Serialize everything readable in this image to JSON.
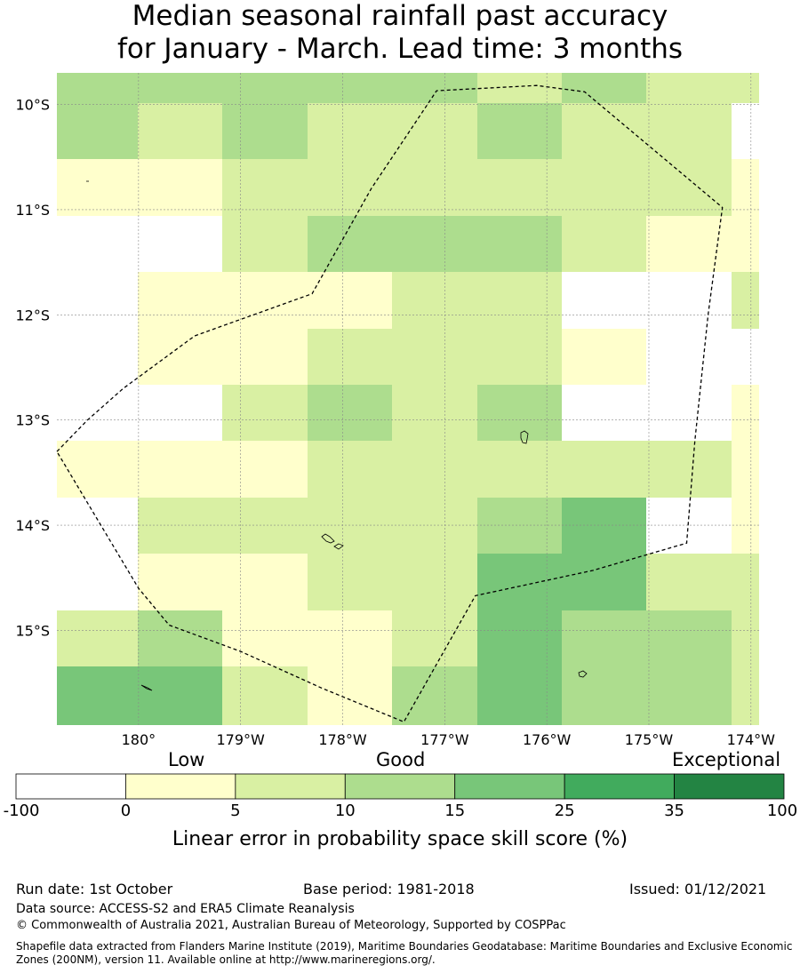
{
  "title_line1": "Median seasonal rainfall past accuracy",
  "title_line2": "for January - March. Lead time: 3 months",
  "map": {
    "lon_labels": [
      "180°",
      "179°W",
      "178°W",
      "177°W",
      "176°W",
      "175°W",
      "174°W"
    ],
    "lat_labels": [
      "10°S",
      "11°S",
      "12°S",
      "13°S",
      "14°S",
      "15°S"
    ],
    "lon_values": [
      180,
      -179,
      -178,
      -177,
      -176,
      -175,
      -174
    ],
    "lat_values": [
      -10,
      -11,
      -12,
      -13,
      -14,
      -15
    ],
    "extent": {
      "lon_min": 179.2,
      "lon_max": -173.92,
      "lat_min": -15.9,
      "lat_max": -9.7
    },
    "grid_cell_deg": 0.833,
    "skill_grid_rows_north_to_south": [
      [
        3,
        3,
        3,
        3,
        3,
        2,
        3,
        2,
        2
      ],
      [
        3,
        2,
        3,
        2,
        2,
        3,
        2,
        2,
        0
      ],
      [
        1,
        1,
        2,
        2,
        2,
        2,
        2,
        2,
        1
      ],
      [
        0,
        0,
        2,
        3,
        3,
        3,
        2,
        1,
        1
      ],
      [
        0,
        1,
        1,
        1,
        2,
        2,
        0,
        0,
        2
      ],
      [
        0,
        1,
        1,
        2,
        2,
        2,
        1,
        0,
        0
      ],
      [
        0,
        0,
        2,
        3,
        2,
        3,
        0,
        0,
        1
      ],
      [
        1,
        1,
        1,
        2,
        2,
        2,
        2,
        2,
        1
      ],
      [
        0,
        2,
        2,
        2,
        2,
        3,
        4,
        0,
        1
      ],
      [
        0,
        1,
        1,
        2,
        2,
        4,
        4,
        2,
        2
      ],
      [
        2,
        3,
        1,
        1,
        2,
        4,
        3,
        3,
        2
      ],
      [
        4,
        4,
        2,
        1,
        3,
        4,
        3,
        3,
        2
      ]
    ],
    "boundary_lonlat": [
      [
        179.2,
        -13.3
      ],
      [
        179.5,
        -13.0
      ],
      [
        179.85,
        -12.7
      ],
      [
        180.55,
        -12.2
      ],
      [
        181.7,
        -11.8
      ],
      [
        182.28,
        -10.8
      ],
      [
        182.92,
        -9.87
      ],
      [
        183.9,
        -9.82
      ],
      [
        184.37,
        -9.88
      ],
      [
        185.72,
        -10.98
      ],
      [
        185.58,
        -12.0
      ],
      [
        185.45,
        -13.2
      ],
      [
        185.37,
        -14.17
      ],
      [
        184.45,
        -14.43
      ],
      [
        183.3,
        -14.67
      ],
      [
        182.6,
        -15.87
      ],
      [
        181.8,
        -15.55
      ],
      [
        181.0,
        -15.2
      ],
      [
        180.3,
        -14.95
      ],
      [
        180.0,
        -14.6
      ],
      [
        179.6,
        -13.95
      ],
      [
        179.2,
        -13.3
      ]
    ],
    "palette": [
      "#ffffff",
      "#ffffcc",
      "#d9f0a3",
      "#addd8e",
      "#78c679",
      "#41ab5d",
      "#238443"
    ]
  },
  "colorbar": {
    "word_low": "Low",
    "word_good": "Good",
    "word_exceptional": "Exceptional",
    "ticks": [
      "-100",
      "0",
      "5",
      "10",
      "15",
      "25",
      "35",
      "100"
    ],
    "colors": [
      "#ffffff",
      "#ffffcc",
      "#d9f0a3",
      "#addd8e",
      "#78c679",
      "#41ab5d",
      "#238443"
    ],
    "label": "Linear error in probability space skill score (%)"
  },
  "footer": {
    "run_date": "Run date: 1st October",
    "base_period": "Base period: 1981-2018",
    "issued": "Issued: 01/12/2021",
    "data_source": "Data source: ACCESS-S2 and ERA5 Climate Reanalysis",
    "copyright": "© Commonwealth of Australia 2021, Australian Bureau of Meteorology, Supported by COSPPac",
    "shapefile_line1": "Shapefile data extracted from Flanders Marine Institute (2019), Maritime Boundaries Geodatabase: Maritime Boundaries and Exclusive Economic",
    "shapefile_line2": "Zones (200NM), version 11. Available online at http://www.marineregions.org/."
  }
}
